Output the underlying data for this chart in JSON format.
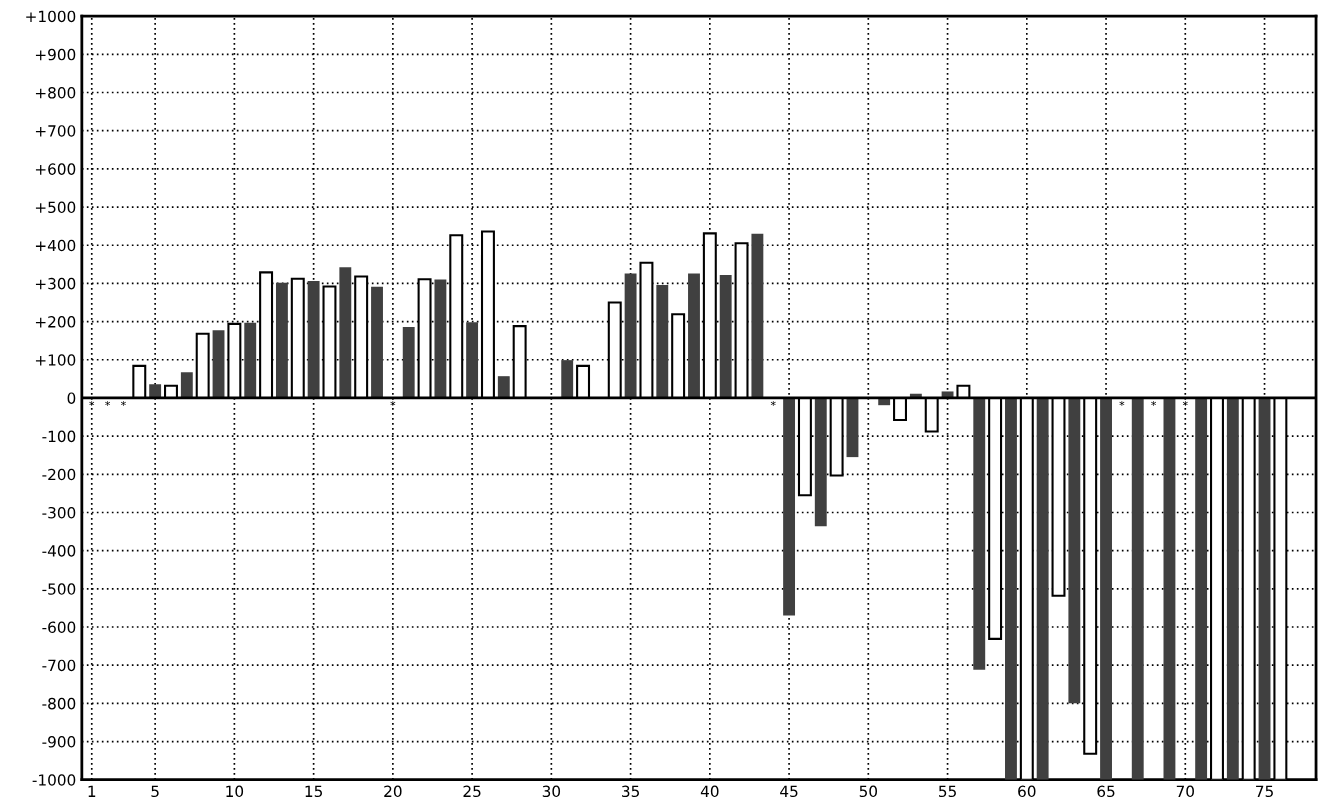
{
  "chart_data": {
    "type": "bar",
    "x": [
      1,
      2,
      3,
      4,
      5,
      6,
      7,
      8,
      9,
      10,
      11,
      12,
      13,
      14,
      15,
      16,
      17,
      18,
      19,
      20,
      21,
      22,
      23,
      24,
      25,
      26,
      27,
      28,
      29,
      30,
      31,
      32,
      33,
      34,
      35,
      36,
      37,
      38,
      39,
      40,
      41,
      42,
      43,
      44,
      45,
      46,
      47,
      48,
      49,
      50,
      51,
      52,
      53,
      54,
      55,
      56,
      57,
      58,
      59,
      60,
      61,
      62,
      63,
      64,
      65,
      66,
      67,
      68,
      69,
      70,
      71,
      72,
      73,
      74,
      75,
      76
    ],
    "values": [
      0,
      0,
      0,
      84,
      36,
      32,
      67,
      168,
      177,
      194,
      197,
      329,
      302,
      312,
      306,
      292,
      342,
      318,
      291,
      0,
      186,
      311,
      310,
      426,
      198,
      436,
      57,
      188,
      null,
      null,
      99,
      84,
      null,
      250,
      326,
      354,
      296,
      219,
      326,
      431,
      322,
      405,
      430,
      0,
      -570,
      -255,
      -336,
      -203,
      -155,
      null,
      -19,
      -58,
      11,
      -88,
      17,
      32,
      -712,
      -631,
      -1000,
      -1000,
      -1000,
      -518,
      -800,
      -932,
      -1000,
      0,
      -1000,
      0,
      -1000,
      0,
      -1000,
      -1000,
      -1000,
      -1000,
      -1000,
      -1000
    ],
    "colors": [
      "#ffffff",
      "#404040",
      "#ffffff",
      "#ffffff",
      "#404040",
      "#ffffff",
      "#404040",
      "#ffffff",
      "#404040",
      "#ffffff",
      "#404040",
      "#ffffff",
      "#404040",
      "#ffffff",
      "#404040",
      "#ffffff",
      "#404040",
      "#ffffff",
      "#404040",
      "#ffffff",
      "#404040",
      "#ffffff",
      "#404040",
      "#ffffff",
      "#404040",
      "#ffffff",
      "#404040",
      "#ffffff",
      "#404040",
      "#ffffff",
      "#404040",
      "#ffffff",
      "#404040",
      "#ffffff",
      "#404040",
      "#ffffff",
      "#404040",
      "#ffffff",
      "#404040",
      "#ffffff",
      "#404040",
      "#ffffff",
      "#404040",
      "#ffffff",
      "#404040",
      "#ffffff",
      "#404040",
      "#ffffff",
      "#404040",
      "#ffffff",
      "#404040",
      "#ffffff",
      "#404040",
      "#ffffff",
      "#404040",
      "#ffffff",
      "#404040",
      "#ffffff",
      "#404040",
      "#ffffff",
      "#404040",
      "#ffffff",
      "#404040",
      "#ffffff",
      "#404040",
      "#ffffff",
      "#404040",
      "#ffffff",
      "#404040",
      "#ffffff",
      "#404040",
      "#ffffff",
      "#404040",
      "#ffffff",
      "#404040",
      "#ffffff"
    ],
    "xlim": [
      0.375,
      78.25
    ],
    "xticks": [
      1,
      5,
      10,
      15,
      20,
      25,
      30,
      35,
      40,
      45,
      50,
      55,
      60,
      65,
      70,
      75
    ],
    "ylim": [
      -1000,
      1000
    ],
    "yticks": [
      {
        "value": -1000,
        "label": "-1000"
      },
      {
        "value": -900,
        "label": "-900"
      },
      {
        "value": -800,
        "label": "-800"
      },
      {
        "value": -700,
        "label": "-700"
      },
      {
        "value": -600,
        "label": "-600"
      },
      {
        "value": -500,
        "label": "-500"
      },
      {
        "value": -400,
        "label": "-400"
      },
      {
        "value": -300,
        "label": "-300"
      },
      {
        "value": -200,
        "label": "-200"
      },
      {
        "value": -100,
        "label": "-100"
      },
      0,
      {
        "value": 100,
        "label": "+100"
      },
      {
        "value": 200,
        "label": "+200"
      },
      {
        "value": 300,
        "label": "+300"
      },
      {
        "value": 400,
        "label": "+400"
      },
      {
        "value": 500,
        "label": "+500"
      },
      {
        "value": 600,
        "label": "+600"
      },
      {
        "value": 700,
        "label": "+700"
      },
      {
        "value": 800,
        "label": "+800"
      },
      {
        "value": 900,
        "label": "+900"
      },
      {
        "value": 1000,
        "label": "+1000"
      }
    ],
    "grid": true,
    "annotations": [
      {
        "text": "*",
        "x": 1,
        "y": 0
      },
      {
        "text": "*",
        "x": 2,
        "y": 0
      },
      {
        "text": "*",
        "x": 3,
        "y": 0
      },
      {
        "text": "*",
        "x": 20,
        "y": 0
      },
      {
        "text": "*",
        "x": 44,
        "y": 0
      },
      {
        "text": "*",
        "x": 66,
        "y": 0
      },
      {
        "text": "*",
        "x": 68,
        "y": 0
      },
      {
        "text": "*",
        "x": 70,
        "y": 0
      }
    ]
  }
}
